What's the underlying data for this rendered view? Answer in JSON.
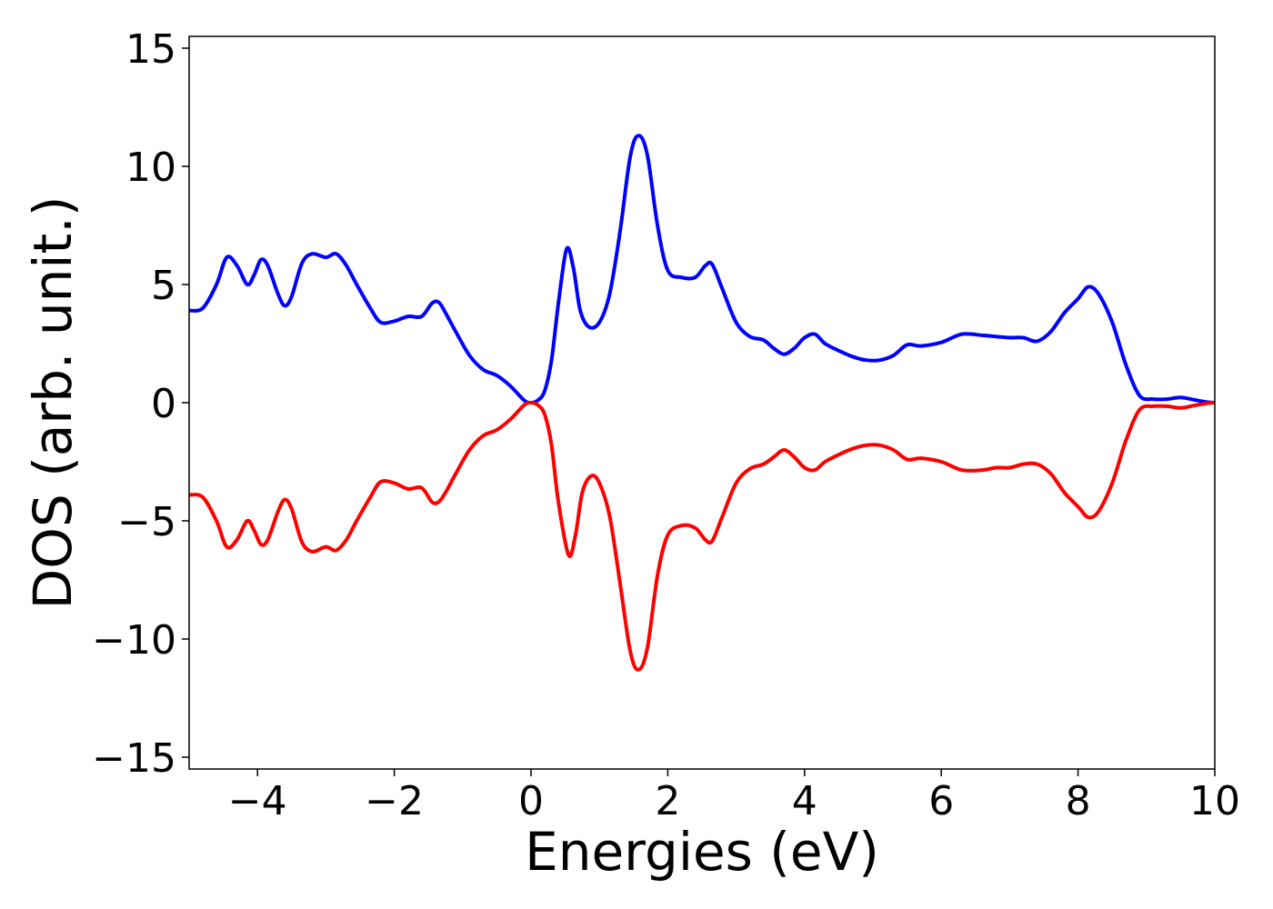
{
  "chart_data": {
    "type": "line",
    "title": "",
    "xlabel": "Energies (eV)",
    "ylabel": "DOS (arb. unit.)",
    "xlim": [
      -5,
      10
    ],
    "ylim": [
      -15.5,
      15.5
    ],
    "x_ticks": [
      -4,
      -2,
      0,
      2,
      4,
      6,
      8,
      10
    ],
    "x_tick_labels": [
      "−4",
      "−2",
      "0",
      "2",
      "4",
      "6",
      "8",
      "10"
    ],
    "y_ticks": [
      15,
      10,
      5,
      0,
      -5,
      -10,
      -15
    ],
    "y_tick_labels": [
      "15",
      "10",
      "5",
      "0",
      "−5",
      "−10",
      "−15"
    ],
    "grid": false,
    "legend": "none",
    "series": [
      {
        "color": "#0000ff",
        "points": [
          [
            -5.0,
            3.9
          ],
          [
            -4.8,
            4.0
          ],
          [
            -4.6,
            5.0
          ],
          [
            -4.45,
            6.15
          ],
          [
            -4.3,
            5.8
          ],
          [
            -4.15,
            5.0
          ],
          [
            -4.05,
            5.4
          ],
          [
            -3.95,
            6.05
          ],
          [
            -3.85,
            5.8
          ],
          [
            -3.7,
            4.6
          ],
          [
            -3.6,
            4.1
          ],
          [
            -3.5,
            4.5
          ],
          [
            -3.35,
            5.9
          ],
          [
            -3.2,
            6.3
          ],
          [
            -3.0,
            6.15
          ],
          [
            -2.85,
            6.3
          ],
          [
            -2.7,
            5.8
          ],
          [
            -2.55,
            5.0
          ],
          [
            -2.35,
            4.0
          ],
          [
            -2.2,
            3.4
          ],
          [
            -2.0,
            3.45
          ],
          [
            -1.8,
            3.65
          ],
          [
            -1.6,
            3.65
          ],
          [
            -1.45,
            4.2
          ],
          [
            -1.35,
            4.25
          ],
          [
            -1.25,
            3.8
          ],
          [
            -1.1,
            3.0
          ],
          [
            -0.9,
            2.0
          ],
          [
            -0.7,
            1.4
          ],
          [
            -0.5,
            1.15
          ],
          [
            -0.3,
            0.7
          ],
          [
            -0.1,
            0.1
          ],
          [
            0.0,
            0.0
          ],
          [
            0.1,
            0.1
          ],
          [
            0.2,
            0.5
          ],
          [
            0.3,
            1.8
          ],
          [
            0.4,
            4.2
          ],
          [
            0.52,
            6.5
          ],
          [
            0.62,
            5.7
          ],
          [
            0.72,
            3.9
          ],
          [
            0.85,
            3.2
          ],
          [
            1.0,
            3.4
          ],
          [
            1.15,
            4.6
          ],
          [
            1.3,
            7.2
          ],
          [
            1.45,
            10.4
          ],
          [
            1.57,
            11.3
          ],
          [
            1.7,
            10.5
          ],
          [
            1.85,
            7.5
          ],
          [
            2.0,
            5.6
          ],
          [
            2.2,
            5.3
          ],
          [
            2.4,
            5.3
          ],
          [
            2.55,
            5.8
          ],
          [
            2.65,
            5.85
          ],
          [
            2.8,
            4.8
          ],
          [
            3.0,
            3.4
          ],
          [
            3.2,
            2.8
          ],
          [
            3.4,
            2.65
          ],
          [
            3.55,
            2.3
          ],
          [
            3.7,
            2.05
          ],
          [
            3.85,
            2.3
          ],
          [
            4.0,
            2.75
          ],
          [
            4.15,
            2.9
          ],
          [
            4.3,
            2.5
          ],
          [
            4.5,
            2.2
          ],
          [
            4.7,
            1.95
          ],
          [
            4.9,
            1.8
          ],
          [
            5.1,
            1.8
          ],
          [
            5.3,
            2.0
          ],
          [
            5.5,
            2.45
          ],
          [
            5.7,
            2.4
          ],
          [
            6.0,
            2.55
          ],
          [
            6.3,
            2.9
          ],
          [
            6.6,
            2.85
          ],
          [
            6.8,
            2.8
          ],
          [
            7.0,
            2.75
          ],
          [
            7.2,
            2.75
          ],
          [
            7.4,
            2.6
          ],
          [
            7.6,
            3.0
          ],
          [
            7.8,
            3.8
          ],
          [
            8.0,
            4.4
          ],
          [
            8.15,
            4.9
          ],
          [
            8.3,
            4.6
          ],
          [
            8.5,
            3.4
          ],
          [
            8.7,
            1.6
          ],
          [
            8.9,
            0.3
          ],
          [
            9.1,
            0.15
          ],
          [
            9.3,
            0.15
          ],
          [
            9.5,
            0.22
          ],
          [
            9.7,
            0.12
          ],
          [
            9.9,
            0.02
          ],
          [
            10.0,
            0.0
          ]
        ]
      },
      {
        "color": "#ff0000",
        "points": [
          [
            -5.0,
            -3.9
          ],
          [
            -4.8,
            -4.0
          ],
          [
            -4.6,
            -5.0
          ],
          [
            -4.45,
            -6.1
          ],
          [
            -4.3,
            -5.8
          ],
          [
            -4.15,
            -5.0
          ],
          [
            -4.05,
            -5.4
          ],
          [
            -3.95,
            -6.0
          ],
          [
            -3.85,
            -5.8
          ],
          [
            -3.7,
            -4.6
          ],
          [
            -3.6,
            -4.1
          ],
          [
            -3.5,
            -4.5
          ],
          [
            -3.35,
            -5.9
          ],
          [
            -3.2,
            -6.3
          ],
          [
            -3.0,
            -6.1
          ],
          [
            -2.85,
            -6.25
          ],
          [
            -2.7,
            -5.8
          ],
          [
            -2.55,
            -5.0
          ],
          [
            -2.35,
            -4.0
          ],
          [
            -2.2,
            -3.35
          ],
          [
            -2.0,
            -3.4
          ],
          [
            -1.8,
            -3.65
          ],
          [
            -1.6,
            -3.6
          ],
          [
            -1.45,
            -4.2
          ],
          [
            -1.35,
            -4.2
          ],
          [
            -1.25,
            -3.8
          ],
          [
            -1.1,
            -3.0
          ],
          [
            -0.9,
            -2.0
          ],
          [
            -0.7,
            -1.4
          ],
          [
            -0.5,
            -1.15
          ],
          [
            -0.3,
            -0.7
          ],
          [
            -0.1,
            -0.1
          ],
          [
            0.0,
            0.0
          ],
          [
            0.1,
            -0.1
          ],
          [
            0.2,
            -0.5
          ],
          [
            0.3,
            -1.8
          ],
          [
            0.4,
            -4.2
          ],
          [
            0.55,
            -6.45
          ],
          [
            0.65,
            -5.6
          ],
          [
            0.75,
            -3.8
          ],
          [
            0.88,
            -3.1
          ],
          [
            1.0,
            -3.4
          ],
          [
            1.15,
            -4.8
          ],
          [
            1.3,
            -7.6
          ],
          [
            1.45,
            -10.5
          ],
          [
            1.57,
            -11.3
          ],
          [
            1.7,
            -10.4
          ],
          [
            1.85,
            -7.3
          ],
          [
            2.0,
            -5.6
          ],
          [
            2.2,
            -5.2
          ],
          [
            2.4,
            -5.3
          ],
          [
            2.55,
            -5.8
          ],
          [
            2.65,
            -5.85
          ],
          [
            2.8,
            -4.8
          ],
          [
            3.0,
            -3.4
          ],
          [
            3.2,
            -2.8
          ],
          [
            3.4,
            -2.6
          ],
          [
            3.55,
            -2.3
          ],
          [
            3.7,
            -2.0
          ],
          [
            3.85,
            -2.3
          ],
          [
            4.0,
            -2.75
          ],
          [
            4.15,
            -2.85
          ],
          [
            4.3,
            -2.5
          ],
          [
            4.5,
            -2.2
          ],
          [
            4.7,
            -1.95
          ],
          [
            4.9,
            -1.8
          ],
          [
            5.1,
            -1.8
          ],
          [
            5.3,
            -2.0
          ],
          [
            5.5,
            -2.4
          ],
          [
            5.7,
            -2.35
          ],
          [
            6.0,
            -2.5
          ],
          [
            6.3,
            -2.85
          ],
          [
            6.6,
            -2.85
          ],
          [
            6.8,
            -2.75
          ],
          [
            7.0,
            -2.75
          ],
          [
            7.2,
            -2.6
          ],
          [
            7.4,
            -2.6
          ],
          [
            7.6,
            -3.0
          ],
          [
            7.8,
            -3.8
          ],
          [
            8.0,
            -4.4
          ],
          [
            8.15,
            -4.85
          ],
          [
            8.3,
            -4.6
          ],
          [
            8.5,
            -3.4
          ],
          [
            8.7,
            -1.6
          ],
          [
            8.9,
            -0.3
          ],
          [
            9.1,
            -0.15
          ],
          [
            9.3,
            -0.15
          ],
          [
            9.5,
            -0.22
          ],
          [
            9.7,
            -0.12
          ],
          [
            9.9,
            -0.02
          ],
          [
            10.0,
            0.0
          ]
        ]
      }
    ]
  }
}
